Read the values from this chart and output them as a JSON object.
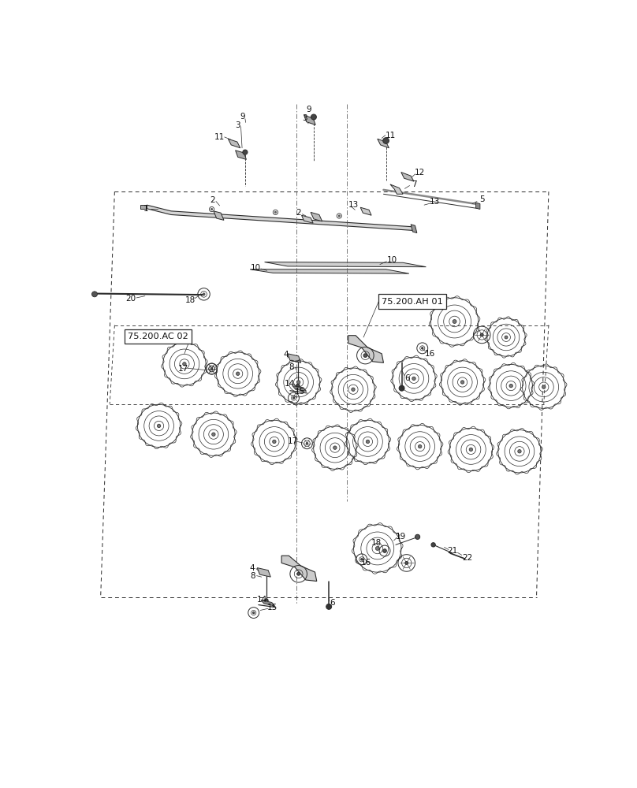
{
  "bg_color": "#ffffff",
  "lc": "#2a2a2a",
  "fig_width": 8.08,
  "fig_height": 10.0,
  "dpi": 100,
  "box_label_1": "75.200.AH 01",
  "box_label_2": "75.200.AC 02"
}
